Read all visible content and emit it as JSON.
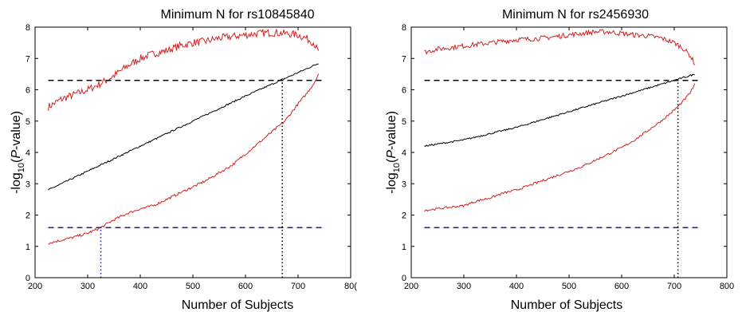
{
  "chart_data": [
    {
      "type": "line",
      "title": "Minimum N for rs10845840",
      "xlabel": "Number of Subjects",
      "ylabel_prefix": "-log",
      "ylabel_sub": "10",
      "ylabel_p": "P",
      "ylabel_suffix": "-value)",
      "xlim": [
        200,
        800
      ],
      "ylim": [
        0,
        8
      ],
      "xticks": [
        "200",
        "300",
        "400",
        "500",
        "600",
        "700",
        "80("
      ],
      "yticks": [
        "0",
        "1",
        "2",
        "3",
        "4",
        "5",
        "6",
        "7",
        "8"
      ],
      "thresholds": [
        {
          "y": 6.3,
          "color": "#000000",
          "style": "dashed"
        },
        {
          "y": 1.6,
          "color": "#1a1aa0",
          "style": "dashed"
        }
      ],
      "markers": [
        {
          "x": 325,
          "y_from": 0,
          "y_to": 1.6,
          "color": "#1a1aa0",
          "style": "dotted"
        },
        {
          "x": 670,
          "y_from": 0,
          "y_to": 6.3,
          "color": "#000000",
          "style": "dotted"
        }
      ],
      "series": [
        {
          "role": "upper",
          "color": "#d42020",
          "noise": 0.12,
          "x": [
            225,
            250,
            275,
            300,
            325,
            350,
            375,
            400,
            425,
            450,
            475,
            500,
            525,
            550,
            575,
            600,
            625,
            650,
            675,
            700,
            715,
            730,
            740
          ],
          "y": [
            5.45,
            5.7,
            5.85,
            6.0,
            6.2,
            6.45,
            6.75,
            7.0,
            7.15,
            7.25,
            7.4,
            7.5,
            7.55,
            7.65,
            7.7,
            7.75,
            7.8,
            7.82,
            7.8,
            7.75,
            7.65,
            7.5,
            7.15
          ]
        },
        {
          "role": "median",
          "color": "#000000",
          "noise": 0.025,
          "x": [
            225,
            300,
            400,
            500,
            600,
            700,
            740
          ],
          "y": [
            2.8,
            3.4,
            4.2,
            5.0,
            5.8,
            6.55,
            6.85
          ]
        },
        {
          "role": "lower",
          "color": "#d42020",
          "noise": 0.04,
          "x": [
            225,
            250,
            275,
            300,
            325,
            350,
            375,
            400,
            425,
            450,
            475,
            500,
            525,
            550,
            575,
            600,
            625,
            650,
            675,
            700,
            715,
            730,
            740
          ],
          "y": [
            1.1,
            1.2,
            1.3,
            1.42,
            1.6,
            1.85,
            2.05,
            2.2,
            2.3,
            2.5,
            2.7,
            2.9,
            3.1,
            3.35,
            3.6,
            3.95,
            4.3,
            4.65,
            5.0,
            5.55,
            5.85,
            6.2,
            6.55
          ]
        }
      ]
    },
    {
      "type": "line",
      "title": "Minimum N for rs2456930",
      "xlabel": "Number of Subjects",
      "ylabel_prefix": "-log",
      "ylabel_sub": "10",
      "ylabel_p": "P",
      "ylabel_suffix": "-value)",
      "xlim": [
        200,
        800
      ],
      "ylim": [
        0,
        8
      ],
      "xticks": [
        "200",
        "300",
        "400",
        "500",
        "600",
        "700",
        "800"
      ],
      "yticks": [
        "0",
        "1",
        "2",
        "3",
        "4",
        "5",
        "6",
        "7",
        "8"
      ],
      "thresholds": [
        {
          "y": 6.3,
          "color": "#000000",
          "style": "dashed"
        },
        {
          "y": 1.6,
          "color": "#1a1aa0",
          "style": "dashed"
        }
      ],
      "markers": [
        {
          "x": 707,
          "y_from": 0,
          "y_to": 6.3,
          "color": "#000000",
          "style": "dotted"
        }
      ],
      "series": [
        {
          "role": "upper",
          "color": "#d42020",
          "noise": 0.08,
          "x": [
            225,
            250,
            275,
            300,
            325,
            350,
            375,
            400,
            425,
            450,
            475,
            500,
            525,
            550,
            575,
            600,
            625,
            650,
            675,
            700,
            715,
            730,
            740
          ],
          "y": [
            7.2,
            7.3,
            7.35,
            7.4,
            7.45,
            7.5,
            7.55,
            7.6,
            7.62,
            7.65,
            7.7,
            7.75,
            7.8,
            7.85,
            7.85,
            7.8,
            7.75,
            7.72,
            7.65,
            7.5,
            7.35,
            7.1,
            6.8
          ]
        },
        {
          "role": "median",
          "color": "#000000",
          "noise": 0.025,
          "x": [
            225,
            300,
            400,
            500,
            600,
            700,
            740
          ],
          "y": [
            4.2,
            4.4,
            4.8,
            5.3,
            5.8,
            6.3,
            6.5
          ]
        },
        {
          "role": "lower",
          "color": "#d42020",
          "noise": 0.035,
          "x": [
            225,
            250,
            275,
            300,
            325,
            350,
            375,
            400,
            425,
            450,
            475,
            500,
            525,
            550,
            575,
            600,
            625,
            650,
            675,
            700,
            715,
            730,
            740
          ],
          "y": [
            2.15,
            2.2,
            2.25,
            2.3,
            2.45,
            2.55,
            2.7,
            2.8,
            2.95,
            3.1,
            3.25,
            3.4,
            3.55,
            3.75,
            3.95,
            4.15,
            4.4,
            4.7,
            5.0,
            5.35,
            5.6,
            5.9,
            6.2
          ]
        }
      ]
    }
  ]
}
